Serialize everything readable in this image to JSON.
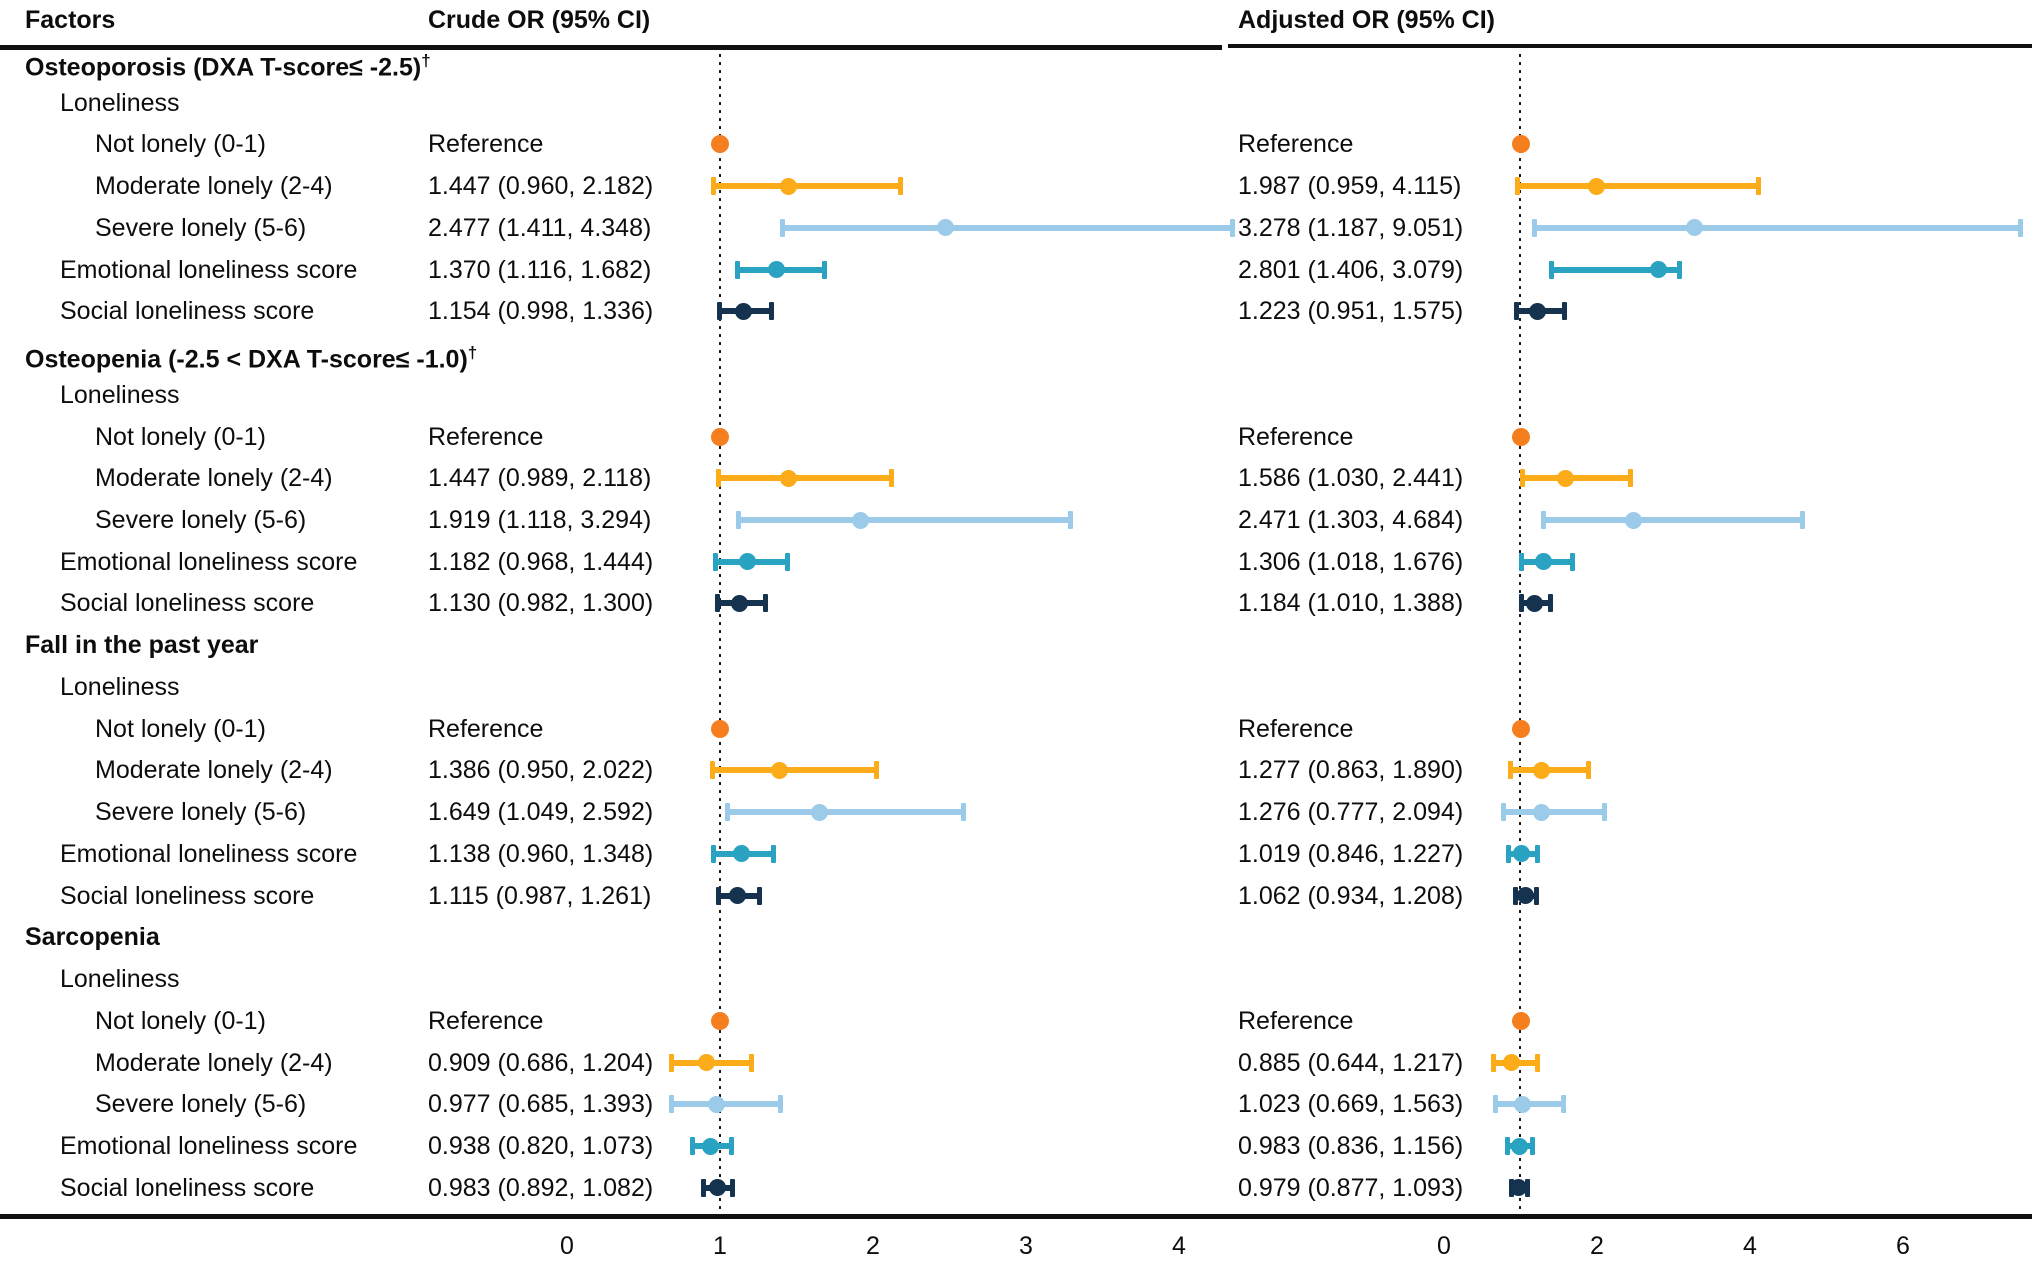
{
  "header": {
    "factors": "Factors",
    "crude": "Crude OR (95% CI)",
    "adjusted": "Adjusted OR (95% CI)"
  },
  "colors": {
    "reference": "#F57E1E",
    "moderate": "#FBAC18",
    "severe": "#9CCBE9",
    "emotional": "#2AA3C2",
    "social": "#15334E",
    "rule": "#111111",
    "text": "#0d0d0d"
  },
  "chart_data": {
    "type": "forest",
    "subheader_label": "Loneliness",
    "panels": [
      {
        "id": "crude",
        "title": "Crude OR (95% CI)",
        "xticks": [
          0,
          1,
          2,
          3,
          4
        ],
        "xlim": [
          0,
          4.55
        ],
        "ref_line": 1,
        "grid": false
      },
      {
        "id": "adjusted",
        "title": "Adjusted OR (95% CI)",
        "xticks": [
          0,
          2,
          4,
          6
        ],
        "xlim": [
          0,
          7.55
        ],
        "ref_line": 1,
        "grid": false
      }
    ],
    "series_legend": [
      {
        "key": "reference",
        "label": "Not lonely (0-1)",
        "color": "#F57E1E"
      },
      {
        "key": "moderate",
        "label": "Moderate lonely (2-4)",
        "color": "#FBAC18"
      },
      {
        "key": "severe",
        "label": "Severe lonely (5-6)",
        "color": "#9CCBE9"
      },
      {
        "key": "emotional",
        "label": "Emotional loneliness score",
        "color": "#2AA3C2"
      },
      {
        "key": "social",
        "label": "Social loneliness score",
        "color": "#15334E"
      }
    ],
    "sections": [
      {
        "title": "Osteoporosis (DXA T-score≤ -2.5)†",
        "rows": [
          {
            "label": "Not lonely (0-1)",
            "key": "reference",
            "crude_text": "Reference",
            "adjusted_text": "Reference",
            "crude": {
              "or": 1.0
            },
            "adjusted": {
              "or": 1.0
            }
          },
          {
            "label": "Moderate lonely (2-4)",
            "key": "moderate",
            "crude_text": "1.447 (0.960, 2.182)",
            "adjusted_text": "1.987 (0.959, 4.115)",
            "crude": {
              "or": 1.447,
              "lo": 0.96,
              "hi": 2.182
            },
            "adjusted": {
              "or": 1.987,
              "lo": 0.959,
              "hi": 4.115
            }
          },
          {
            "label": "Severe lonely (5-6)",
            "key": "severe",
            "crude_text": "2.477 (1.411, 4.348)",
            "adjusted_text": "3.278 (1.187, 9.051)",
            "crude": {
              "or": 2.477,
              "lo": 1.411,
              "hi": 4.348
            },
            "adjusted": {
              "or": 3.278,
              "lo": 1.187,
              "hi": 9.051
            }
          },
          {
            "label": "Emotional loneliness score",
            "key": "emotional",
            "crude_text": "1.370 (1.116, 1.682)",
            "adjusted_text": "2.801 (1.406, 3.079)",
            "crude": {
              "or": 1.37,
              "lo": 1.116,
              "hi": 1.682
            },
            "adjusted": {
              "or": 2.801,
              "lo": 1.406,
              "hi": 3.079
            }
          },
          {
            "label": "Social loneliness score",
            "key": "social",
            "crude_text": "1.154 (0.998, 1.336)",
            "adjusted_text": "1.223 (0.951, 1.575)",
            "crude": {
              "or": 1.154,
              "lo": 0.998,
              "hi": 1.336
            },
            "adjusted": {
              "or": 1.223,
              "lo": 0.951,
              "hi": 1.575
            }
          }
        ]
      },
      {
        "title": "Osteopenia (-2.5 < DXA T-score≤ -1.0)†",
        "rows": [
          {
            "label": "Not lonely (0-1)",
            "key": "reference",
            "crude_text": "Reference",
            "adjusted_text": "Reference",
            "crude": {
              "or": 1.0
            },
            "adjusted": {
              "or": 1.0
            }
          },
          {
            "label": "Moderate lonely (2-4)",
            "key": "moderate",
            "crude_text": "1.447 (0.989, 2.118)",
            "adjusted_text": "1.586 (1.030, 2.441)",
            "crude": {
              "or": 1.447,
              "lo": 0.989,
              "hi": 2.118
            },
            "adjusted": {
              "or": 1.586,
              "lo": 1.03,
              "hi": 2.441
            }
          },
          {
            "label": "Severe lonely (5-6)",
            "key": "severe",
            "crude_text": "1.919 (1.118, 3.294)",
            "adjusted_text": "2.471 (1.303, 4.684)",
            "crude": {
              "or": 1.919,
              "lo": 1.118,
              "hi": 3.294
            },
            "adjusted": {
              "or": 2.471,
              "lo": 1.303,
              "hi": 4.684
            }
          },
          {
            "label": "Emotional loneliness score",
            "key": "emotional",
            "crude_text": "1.182 (0.968, 1.444)",
            "adjusted_text": "1.306 (1.018, 1.676)",
            "crude": {
              "or": 1.182,
              "lo": 0.968,
              "hi": 1.444
            },
            "adjusted": {
              "or": 1.306,
              "lo": 1.018,
              "hi": 1.676
            }
          },
          {
            "label": "Social loneliness score",
            "key": "social",
            "crude_text": "1.130 (0.982, 1.300)",
            "adjusted_text": "1.184 (1.010, 1.388)",
            "crude": {
              "or": 1.13,
              "lo": 0.982,
              "hi": 1.3
            },
            "adjusted": {
              "or": 1.184,
              "lo": 1.01,
              "hi": 1.388
            }
          }
        ]
      },
      {
        "title": "Fall in the past year",
        "rows": [
          {
            "label": "Not lonely (0-1)",
            "key": "reference",
            "crude_text": "Reference",
            "adjusted_text": "Reference",
            "crude": {
              "or": 1.0
            },
            "adjusted": {
              "or": 1.0
            }
          },
          {
            "label": "Moderate lonely (2-4)",
            "key": "moderate",
            "crude_text": "1.386 (0.950, 2.022)",
            "adjusted_text": "1.277 (0.863, 1.890)",
            "crude": {
              "or": 1.386,
              "lo": 0.95,
              "hi": 2.022
            },
            "adjusted": {
              "or": 1.277,
              "lo": 0.863,
              "hi": 1.89
            }
          },
          {
            "label": "Severe lonely (5-6)",
            "key": "severe",
            "crude_text": "1.649 (1.049, 2.592)",
            "adjusted_text": "1.276 (0.777, 2.094)",
            "crude": {
              "or": 1.649,
              "lo": 1.049,
              "hi": 2.592
            },
            "adjusted": {
              "or": 1.276,
              "lo": 0.777,
              "hi": 2.094
            }
          },
          {
            "label": "Emotional loneliness score",
            "key": "emotional",
            "crude_text": "1.138 (0.960, 1.348)",
            "adjusted_text": "1.019 (0.846, 1.227)",
            "crude": {
              "or": 1.138,
              "lo": 0.96,
              "hi": 1.348
            },
            "adjusted": {
              "or": 1.019,
              "lo": 0.846,
              "hi": 1.227
            }
          },
          {
            "label": "Social loneliness score",
            "key": "social",
            "crude_text": "1.115 (0.987, 1.261)",
            "adjusted_text": "1.062 (0.934, 1.208)",
            "crude": {
              "or": 1.115,
              "lo": 0.987,
              "hi": 1.261
            },
            "adjusted": {
              "or": 1.062,
              "lo": 0.934,
              "hi": 1.208
            }
          }
        ]
      },
      {
        "title": "Sarcopenia",
        "rows": [
          {
            "label": "Not lonely (0-1)",
            "key": "reference",
            "crude_text": "Reference",
            "adjusted_text": "Reference",
            "crude": {
              "or": 1.0
            },
            "adjusted": {
              "or": 1.0
            }
          },
          {
            "label": "Moderate lonely (2-4)",
            "key": "moderate",
            "crude_text": "0.909 (0.686, 1.204)",
            "adjusted_text": "0.885 (0.644, 1.217)",
            "crude": {
              "or": 0.909,
              "lo": 0.686,
              "hi": 1.204
            },
            "adjusted": {
              "or": 0.885,
              "lo": 0.644,
              "hi": 1.217
            }
          },
          {
            "label": "Severe lonely (5-6)",
            "key": "severe",
            "crude_text": "0.977 (0.685, 1.393)",
            "adjusted_text": "1.023 (0.669, 1.563)",
            "crude": {
              "or": 0.977,
              "lo": 0.685,
              "hi": 1.393
            },
            "adjusted": {
              "or": 1.023,
              "lo": 0.669,
              "hi": 1.563
            }
          },
          {
            "label": "Emotional loneliness score",
            "key": "emotional",
            "crude_text": "0.938 (0.820, 1.073)",
            "adjusted_text": "0.983 (0.836, 1.156)",
            "crude": {
              "or": 0.938,
              "lo": 0.82,
              "hi": 1.073
            },
            "adjusted": {
              "or": 0.983,
              "lo": 0.836,
              "hi": 1.156
            }
          },
          {
            "label": "Social loneliness score",
            "key": "social",
            "crude_text": "0.983 (0.892, 1.082)",
            "adjusted_text": "0.979 (0.877, 1.093)",
            "crude": {
              "or": 0.983,
              "lo": 0.892,
              "hi": 1.082
            },
            "adjusted": {
              "or": 0.979,
              "lo": 0.877,
              "hi": 1.093
            }
          }
        ]
      }
    ]
  }
}
